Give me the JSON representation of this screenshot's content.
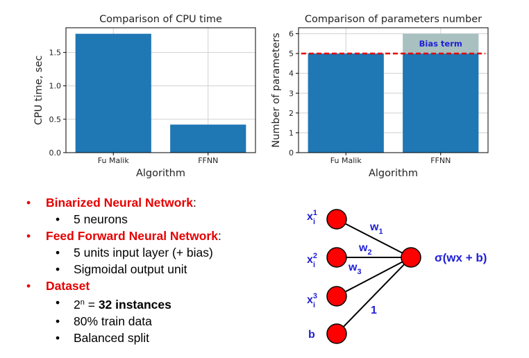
{
  "chart_data": [
    {
      "type": "bar",
      "title": "Comparison of CPU time",
      "xlabel": "Algorithm",
      "ylabel": "CPU time, sec",
      "categories": [
        "Fu Malik",
        "FFNN"
      ],
      "values": [
        1.78,
        0.42
      ],
      "ylim": [
        0,
        1.87
      ],
      "yticks": [
        "0.0",
        "0.5",
        "1.0",
        "1.5"
      ],
      "grid": true,
      "bar_color": "#1f77b4"
    },
    {
      "type": "bar",
      "title": "Comparison of parameters number",
      "xlabel": "Algorithm",
      "ylabel": "Number of parameters",
      "categories": [
        "Fu Malik",
        "FFNN"
      ],
      "values": [
        5,
        5
      ],
      "stacked_extra": [
        0,
        1
      ],
      "extra_label": "Bias term",
      "extra_color": "#a8c0c0",
      "reference_line": 5,
      "reference_color": "#e60000",
      "ylim": [
        0,
        6.3
      ],
      "yticks": [
        "0",
        "1",
        "2",
        "3",
        "4",
        "5",
        "6"
      ],
      "grid": true,
      "bar_color": "#1f77b4"
    }
  ],
  "bullets": {
    "bnn_label": "Binarized Neural Network",
    "bnn_colon": ":",
    "bnn_neurons": "5 neurons",
    "ffnn_label": "Feed Forward Neural Network",
    "ffnn_colon": ":",
    "ffnn_input": "5 units input layer (+ bias)",
    "ffnn_output": "Sigmoidal output unit",
    "dataset_label": "Dataset",
    "instances_base": "2",
    "instances_exp": "n",
    "instances_eq": " = ",
    "instances_bold": "32 instances",
    "train": "80% train data",
    "split": "Balanced split",
    "bullet_char": "•"
  },
  "network": {
    "inputs": [
      {
        "base": "x",
        "sup": "1",
        "sub": "i"
      },
      {
        "base": "x",
        "sup": "2",
        "sub": "i"
      },
      {
        "base": "x",
        "sup": "3",
        "sub": "i"
      }
    ],
    "bias_label": "b",
    "weights": [
      {
        "base": "w",
        "sub": "1"
      },
      {
        "base": "w",
        "sub": "2"
      },
      {
        "base": "w",
        "sub": "3"
      }
    ],
    "bias_weight": "1",
    "output_label": "σ(wx + b)",
    "node_color": "#ff0000",
    "label_color": "#1f1fd6"
  }
}
